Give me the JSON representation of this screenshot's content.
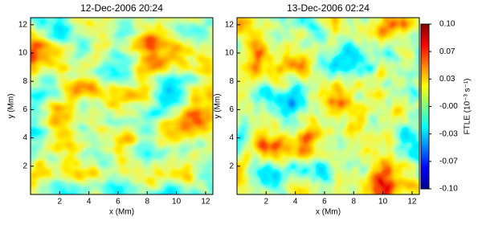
{
  "chart_data": [
    {
      "type": "heatmap",
      "title": "12-Dec-2006 20:24",
      "xlabel": "x (Mm)",
      "ylabel": "y (Mm)",
      "xlim": [
        0,
        12.5
      ],
      "ylim": [
        0,
        12.5
      ],
      "xticks": [
        2,
        4,
        6,
        8,
        10,
        12
      ],
      "yticks": [
        2,
        4,
        6,
        8,
        10,
        12
      ]
    },
    {
      "type": "heatmap",
      "title": "13-Dec-2006 02:24",
      "xlabel": "x (Mm)",
      "ylabel": "y (Mm)",
      "xlim": [
        0,
        12.5
      ],
      "ylim": [
        0,
        12.5
      ],
      "xticks": [
        2,
        4,
        6,
        8,
        10,
        12
      ],
      "yticks": [
        2,
        4,
        6,
        8,
        10,
        12
      ],
      "colorbar": {
        "label": "FTLE (10⁻³ s⁻¹)",
        "lim": [
          -0.1,
          0.1
        ],
        "ticks": [
          {
            "value": 0.1,
            "label": "0.10"
          },
          {
            "value": 0.0667,
            "label": "0.07"
          },
          {
            "value": 0.0333,
            "label": "0.03"
          },
          {
            "value": 0,
            "label": "-0.00"
          },
          {
            "value": -0.0333,
            "label": "-0.03"
          },
          {
            "value": -0.0667,
            "label": "-0.07"
          },
          {
            "value": -0.1,
            "label": "-0.10"
          }
        ]
      }
    }
  ]
}
